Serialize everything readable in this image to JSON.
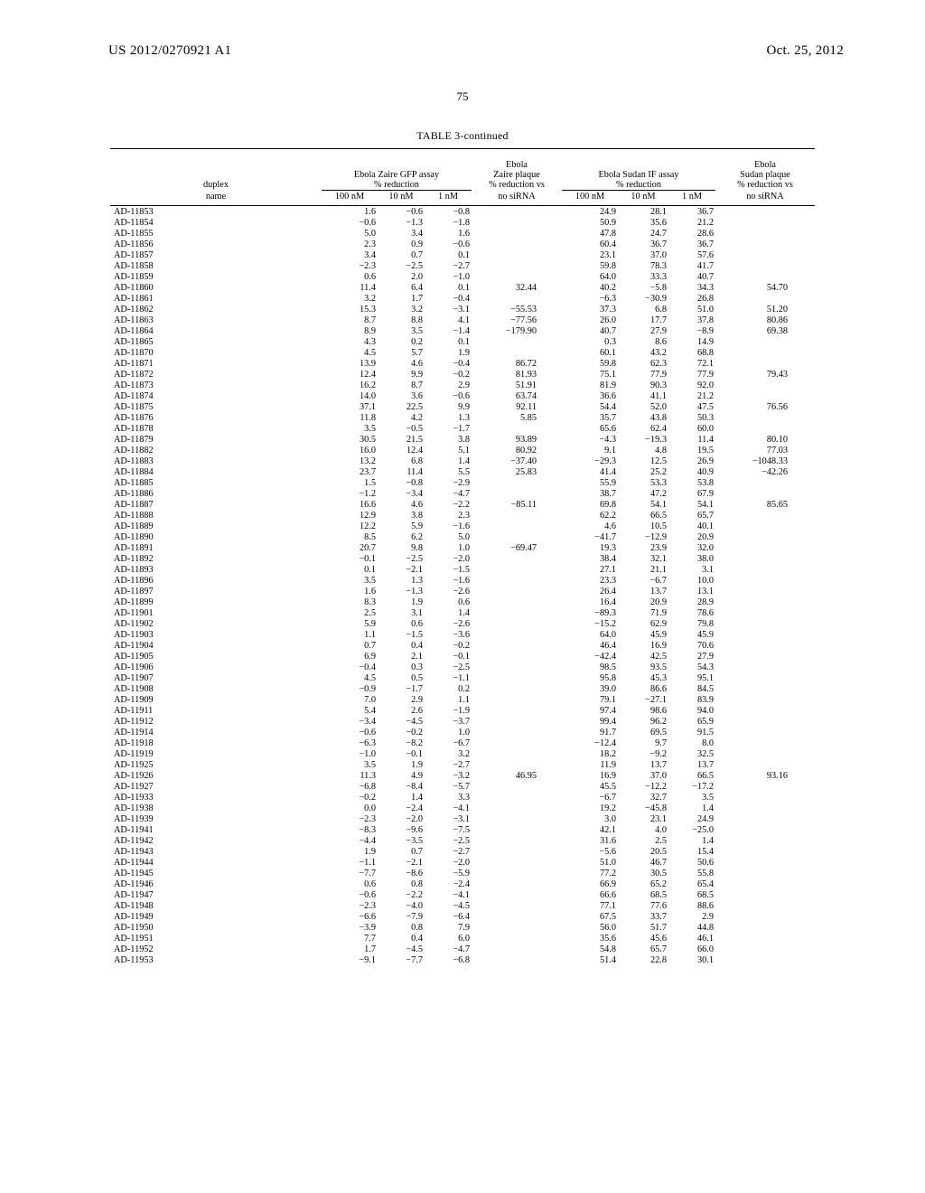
{
  "header": {
    "pub_number": "US 2012/0270921 A1",
    "pub_date": "Oct. 25, 2012",
    "page_number": "75"
  },
  "table": {
    "caption": "TABLE 3-continued",
    "header_group": {
      "duplex": "duplex",
      "zaire_gfp": "Ebola Zaire GFP assay\n% reduction",
      "zaire_plaque": "Ebola\nZaire plaque\n% reduction vs",
      "sudan_if": "Ebola Sudan IF assay\n% reduction",
      "sudan_plaque": "Ebola\nSudan plaque\n% reduction vs"
    },
    "header_units": {
      "name": "name",
      "c1": "100 nM",
      "c2": "10 nM",
      "c3": "1 nM",
      "c4": "no siRNA",
      "c5": "100 nM",
      "c6": "10 nM",
      "c7": "1 nM",
      "c8": "no siRNA"
    },
    "rows": [
      {
        "name": "AD-11853",
        "c1": "1.6",
        "c2": "−0.6",
        "c3": "−0.8",
        "c4": "",
        "c5": "24.9",
        "c6": "28.1",
        "c7": "36.7",
        "c8": ""
      },
      {
        "name": "AD-11854",
        "c1": "−0.6",
        "c2": "−1.3",
        "c3": "−1.8",
        "c4": "",
        "c5": "50.9",
        "c6": "35.6",
        "c7": "21.2",
        "c8": ""
      },
      {
        "name": "AD-11855",
        "c1": "5.0",
        "c2": "3.4",
        "c3": "1.6",
        "c4": "",
        "c5": "47.8",
        "c6": "24.7",
        "c7": "28.6",
        "c8": ""
      },
      {
        "name": "AD-11856",
        "c1": "2.3",
        "c2": "0.9",
        "c3": "−0.6",
        "c4": "",
        "c5": "60.4",
        "c6": "36.7",
        "c7": "36.7",
        "c8": ""
      },
      {
        "name": "AD-11857",
        "c1": "3.4",
        "c2": "0.7",
        "c3": "0.1",
        "c4": "",
        "c5": "23.1",
        "c6": "37.0",
        "c7": "57.6",
        "c8": ""
      },
      {
        "name": "AD-11858",
        "c1": "−2.3",
        "c2": "−2.5",
        "c3": "−2.7",
        "c4": "",
        "c5": "59.8",
        "c6": "78.3",
        "c7": "41.7",
        "c8": ""
      },
      {
        "name": "AD-11859",
        "c1": "0.6",
        "c2": "2.0",
        "c3": "−1.0",
        "c4": "",
        "c5": "64.0",
        "c6": "33.3",
        "c7": "40.7",
        "c8": ""
      },
      {
        "name": "AD-11860",
        "c1": "11.4",
        "c2": "6.4",
        "c3": "0.1",
        "c4": "32.44",
        "c5": "40.2",
        "c6": "−5.8",
        "c7": "34.3",
        "c8": "54.70"
      },
      {
        "name": "AD-11861",
        "c1": "3.2",
        "c2": "1.7",
        "c3": "−0.4",
        "c4": "",
        "c5": "−6.3",
        "c6": "−30.9",
        "c7": "26.8",
        "c8": ""
      },
      {
        "name": "AD-11862",
        "c1": "15.3",
        "c2": "3.2",
        "c3": "−3.1",
        "c4": "−55.53",
        "c5": "37.3",
        "c6": "6.8",
        "c7": "51.0",
        "c8": "51.20"
      },
      {
        "name": "AD-11863",
        "c1": "8.7",
        "c2": "8.8",
        "c3": "4.1",
        "c4": "−77.56",
        "c5": "26.0",
        "c6": "17.7",
        "c7": "37.8",
        "c8": "80.86"
      },
      {
        "name": "AD-11864",
        "c1": "8.9",
        "c2": "3.5",
        "c3": "−1.4",
        "c4": "−179.90",
        "c5": "40.7",
        "c6": "27.9",
        "c7": "−8.9",
        "c8": "69.38"
      },
      {
        "name": "AD-11865",
        "c1": "4.3",
        "c2": "0.2",
        "c3": "0.1",
        "c4": "",
        "c5": "0.3",
        "c6": "8.6",
        "c7": "14.9",
        "c8": ""
      },
      {
        "name": "AD-11870",
        "c1": "4.5",
        "c2": "5.7",
        "c3": "1.9",
        "c4": "",
        "c5": "60.1",
        "c6": "43.2",
        "c7": "68.8",
        "c8": ""
      },
      {
        "name": "AD-11871",
        "c1": "13.9",
        "c2": "4.6",
        "c3": "−0.4",
        "c4": "86.72",
        "c5": "59.8",
        "c6": "62.3",
        "c7": "72.1",
        "c8": ""
      },
      {
        "name": "AD-11872",
        "c1": "12.4",
        "c2": "9.9",
        "c3": "−0.2",
        "c4": "81.93",
        "c5": "75.1",
        "c6": "77.9",
        "c7": "77.9",
        "c8": "79.43"
      },
      {
        "name": "AD-11873",
        "c1": "16.2",
        "c2": "8.7",
        "c3": "2.9",
        "c4": "51.91",
        "c5": "81.9",
        "c6": "90.3",
        "c7": "92.0",
        "c8": ""
      },
      {
        "name": "AD-11874",
        "c1": "14.0",
        "c2": "3.6",
        "c3": "−0.6",
        "c4": "63.74",
        "c5": "36.6",
        "c6": "41.1",
        "c7": "21.2",
        "c8": ""
      },
      {
        "name": "AD-11875",
        "c1": "37.1",
        "c2": "22.5",
        "c3": "9.9",
        "c4": "92.11",
        "c5": "54.4",
        "c6": "52.0",
        "c7": "47.5",
        "c8": "76.56"
      },
      {
        "name": "AD-11876",
        "c1": "11.8",
        "c2": "4.2",
        "c3": "1.3",
        "c4": "5.85",
        "c5": "35.7",
        "c6": "43.8",
        "c7": "50.3",
        "c8": ""
      },
      {
        "name": "AD-11878",
        "c1": "3.5",
        "c2": "−0.5",
        "c3": "−1.7",
        "c4": "",
        "c5": "65.6",
        "c6": "62.4",
        "c7": "60.0",
        "c8": ""
      },
      {
        "name": "AD-11879",
        "c1": "30.5",
        "c2": "21.5",
        "c3": "3.8",
        "c4": "93.89",
        "c5": "−4.3",
        "c6": "−19.3",
        "c7": "11.4",
        "c8": "80.10"
      },
      {
        "name": "AD-11882",
        "c1": "16.0",
        "c2": "12.4",
        "c3": "5.1",
        "c4": "80.92",
        "c5": "9.1",
        "c6": "4.8",
        "c7": "19.5",
        "c8": "77.03"
      },
      {
        "name": "AD-11883",
        "c1": "13.2",
        "c2": "6.8",
        "c3": "1.4",
        "c4": "−37.40",
        "c5": "−29.3",
        "c6": "12.5",
        "c7": "26.9",
        "c8": "−1048.33"
      },
      {
        "name": "AD-11884",
        "c1": "23.7",
        "c2": "11.4",
        "c3": "5.5",
        "c4": "25.83",
        "c5": "41.4",
        "c6": "25.2",
        "c7": "40.9",
        "c8": "−42.26"
      },
      {
        "name": "AD-11885",
        "c1": "1.5",
        "c2": "−0.8",
        "c3": "−2.9",
        "c4": "",
        "c5": "55.9",
        "c6": "53.3",
        "c7": "53.8",
        "c8": ""
      },
      {
        "name": "AD-11886",
        "c1": "−1.2",
        "c2": "−3.4",
        "c3": "−4.7",
        "c4": "",
        "c5": "38.7",
        "c6": "47.2",
        "c7": "67.9",
        "c8": ""
      },
      {
        "name": "AD-11887",
        "c1": "16.6",
        "c2": "4.6",
        "c3": "−2.2",
        "c4": "−85.11",
        "c5": "69.8",
        "c6": "54.1",
        "c7": "54.1",
        "c8": "85.65"
      },
      {
        "name": "AD-11888",
        "c1": "12.9",
        "c2": "3.8",
        "c3": "2.3",
        "c4": "",
        "c5": "62.2",
        "c6": "66.5",
        "c7": "65.7",
        "c8": ""
      },
      {
        "name": "AD-11889",
        "c1": "12.2",
        "c2": "5.9",
        "c3": "−1.6",
        "c4": "",
        "c5": "4.6",
        "c6": "10.5",
        "c7": "40.1",
        "c8": ""
      },
      {
        "name": "AD-11890",
        "c1": "8.5",
        "c2": "6.2",
        "c3": "5.0",
        "c4": "",
        "c5": "−41.7",
        "c6": "−12.9",
        "c7": "20.9",
        "c8": ""
      },
      {
        "name": "AD-11891",
        "c1": "20.7",
        "c2": "9.8",
        "c3": "1.0",
        "c4": "−69.47",
        "c5": "19.3",
        "c6": "23.9",
        "c7": "32.0",
        "c8": ""
      },
      {
        "name": "AD-11892",
        "c1": "−0.1",
        "c2": "−2.5",
        "c3": "−2.0",
        "c4": "",
        "c5": "38.4",
        "c6": "32.1",
        "c7": "38.0",
        "c8": ""
      },
      {
        "name": "AD-11893",
        "c1": "0.1",
        "c2": "−2.1",
        "c3": "−1.5",
        "c4": "",
        "c5": "27.1",
        "c6": "21.1",
        "c7": "3.1",
        "c8": ""
      },
      {
        "name": "AD-11896",
        "c1": "3.5",
        "c2": "1.3",
        "c3": "−1.6",
        "c4": "",
        "c5": "23.3",
        "c6": "−6.7",
        "c7": "10.0",
        "c8": ""
      },
      {
        "name": "AD-11897",
        "c1": "1.6",
        "c2": "−1.3",
        "c3": "−2.6",
        "c4": "",
        "c5": "26.4",
        "c6": "13.7",
        "c7": "13.1",
        "c8": ""
      },
      {
        "name": "AD-11899",
        "c1": "8.3",
        "c2": "1.9",
        "c3": "0.6",
        "c4": "",
        "c5": "16.4",
        "c6": "20.9",
        "c7": "28.9",
        "c8": ""
      },
      {
        "name": "AD-11901",
        "c1": "2.5",
        "c2": "3.1",
        "c3": "1.4",
        "c4": "",
        "c5": "−89.3",
        "c6": "71.9",
        "c7": "78.6",
        "c8": ""
      },
      {
        "name": "AD-11902",
        "c1": "5.9",
        "c2": "0.6",
        "c3": "−2.6",
        "c4": "",
        "c5": "−15.2",
        "c6": "62.9",
        "c7": "79.8",
        "c8": ""
      },
      {
        "name": "AD-11903",
        "c1": "1.1",
        "c2": "−1.5",
        "c3": "−3.6",
        "c4": "",
        "c5": "64.0",
        "c6": "45.9",
        "c7": "45.9",
        "c8": ""
      },
      {
        "name": "AD-11904",
        "c1": "0.7",
        "c2": "0.4",
        "c3": "−0.2",
        "c4": "",
        "c5": "46.4",
        "c6": "16.9",
        "c7": "70.6",
        "c8": ""
      },
      {
        "name": "AD-11905",
        "c1": "6.9",
        "c2": "2.1",
        "c3": "−0.1",
        "c4": "",
        "c5": "−42.4",
        "c6": "42.5",
        "c7": "27.9",
        "c8": ""
      },
      {
        "name": "AD-11906",
        "c1": "−0.4",
        "c2": "0.3",
        "c3": "−2.5",
        "c4": "",
        "c5": "98.5",
        "c6": "93.5",
        "c7": "54.3",
        "c8": ""
      },
      {
        "name": "AD-11907",
        "c1": "4.5",
        "c2": "0.5",
        "c3": "−1.1",
        "c4": "",
        "c5": "95.8",
        "c6": "45.3",
        "c7": "95.1",
        "c8": ""
      },
      {
        "name": "AD-11908",
        "c1": "−0.9",
        "c2": "−1.7",
        "c3": "0.2",
        "c4": "",
        "c5": "39.0",
        "c6": "86.6",
        "c7": "84.5",
        "c8": ""
      },
      {
        "name": "AD-11909",
        "c1": "7.0",
        "c2": "2.9",
        "c3": "1.1",
        "c4": "",
        "c5": "79.1",
        "c6": "−27.1",
        "c7": "83.9",
        "c8": ""
      },
      {
        "name": "AD-11911",
        "c1": "5.4",
        "c2": "2.6",
        "c3": "−1.9",
        "c4": "",
        "c5": "97.4",
        "c6": "98.6",
        "c7": "94.0",
        "c8": ""
      },
      {
        "name": "AD-11912",
        "c1": "−3.4",
        "c2": "−4.5",
        "c3": "−3.7",
        "c4": "",
        "c5": "99.4",
        "c6": "96.2",
        "c7": "65.9",
        "c8": ""
      },
      {
        "name": "AD-11914",
        "c1": "−0.6",
        "c2": "−0.2",
        "c3": "1.0",
        "c4": "",
        "c5": "91.7",
        "c6": "69.5",
        "c7": "91.5",
        "c8": ""
      },
      {
        "name": "AD-11918",
        "c1": "−6.3",
        "c2": "−8.2",
        "c3": "−6.7",
        "c4": "",
        "c5": "−12.4",
        "c6": "9.7",
        "c7": "8.0",
        "c8": ""
      },
      {
        "name": "AD-11919",
        "c1": "−1.0",
        "c2": "−0.1",
        "c3": "3.2",
        "c4": "",
        "c5": "18.2",
        "c6": "−9.2",
        "c7": "32.5",
        "c8": ""
      },
      {
        "name": "AD-11925",
        "c1": "3.5",
        "c2": "1.9",
        "c3": "−2.7",
        "c4": "",
        "c5": "11.9",
        "c6": "13.7",
        "c7": "13.7",
        "c8": ""
      },
      {
        "name": "AD-11926",
        "c1": "11.3",
        "c2": "4.9",
        "c3": "−3.2",
        "c4": "46.95",
        "c5": "16.9",
        "c6": "37.0",
        "c7": "66.5",
        "c8": "93.16"
      },
      {
        "name": "AD-11927",
        "c1": "−6.8",
        "c2": "−8.4",
        "c3": "−5.7",
        "c4": "",
        "c5": "45.5",
        "c6": "−12.2",
        "c7": "−17.2",
        "c8": ""
      },
      {
        "name": "AD-11933",
        "c1": "−0.2",
        "c2": "1.4",
        "c3": "3.3",
        "c4": "",
        "c5": "−6.7",
        "c6": "32.7",
        "c7": "3.5",
        "c8": ""
      },
      {
        "name": "AD-11938",
        "c1": "0.0",
        "c2": "−2.4",
        "c3": "−4.1",
        "c4": "",
        "c5": "19.2",
        "c6": "−45.8",
        "c7": "1.4",
        "c8": ""
      },
      {
        "name": "AD-11939",
        "c1": "−2.3",
        "c2": "−2.0",
        "c3": "−3.1",
        "c4": "",
        "c5": "3.0",
        "c6": "23.1",
        "c7": "24.9",
        "c8": ""
      },
      {
        "name": "AD-11941",
        "c1": "−8.3",
        "c2": "−9.6",
        "c3": "−7.5",
        "c4": "",
        "c5": "42.1",
        "c6": "4.0",
        "c7": "−25.0",
        "c8": ""
      },
      {
        "name": "AD-11942",
        "c1": "−4.4",
        "c2": "−3.5",
        "c3": "−2.5",
        "c4": "",
        "c5": "31.6",
        "c6": "2.5",
        "c7": "1.4",
        "c8": ""
      },
      {
        "name": "AD-11943",
        "c1": "1.9",
        "c2": "0.7",
        "c3": "−2.7",
        "c4": "",
        "c5": "−5.6",
        "c6": "20.5",
        "c7": "15.4",
        "c8": ""
      },
      {
        "name": "AD-11944",
        "c1": "−1.1",
        "c2": "−2.1",
        "c3": "−2.0",
        "c4": "",
        "c5": "51.0",
        "c6": "46.7",
        "c7": "50.6",
        "c8": ""
      },
      {
        "name": "AD-11945",
        "c1": "−7.7",
        "c2": "−8.6",
        "c3": "−5.9",
        "c4": "",
        "c5": "77.2",
        "c6": "30.5",
        "c7": "55.8",
        "c8": ""
      },
      {
        "name": "AD-11946",
        "c1": "0.6",
        "c2": "0.8",
        "c3": "−2.4",
        "c4": "",
        "c5": "66.9",
        "c6": "65.2",
        "c7": "65.4",
        "c8": ""
      },
      {
        "name": "AD-11947",
        "c1": "−0.6",
        "c2": "−2.2",
        "c3": "−4.1",
        "c4": "",
        "c5": "66.6",
        "c6": "68.5",
        "c7": "68.5",
        "c8": ""
      },
      {
        "name": "AD-11948",
        "c1": "−2.3",
        "c2": "−4.0",
        "c3": "−4.5",
        "c4": "",
        "c5": "77.1",
        "c6": "77.6",
        "c7": "88.6",
        "c8": ""
      },
      {
        "name": "AD-11949",
        "c1": "−6.6",
        "c2": "−7.9",
        "c3": "−6.4",
        "c4": "",
        "c5": "67.5",
        "c6": "33.7",
        "c7": "2.9",
        "c8": ""
      },
      {
        "name": "AD-11950",
        "c1": "−3.9",
        "c2": "0.8",
        "c3": "7.9",
        "c4": "",
        "c5": "56.0",
        "c6": "51.7",
        "c7": "44.8",
        "c8": ""
      },
      {
        "name": "AD-11951",
        "c1": "7.7",
        "c2": "0.4",
        "c3": "6.0",
        "c4": "",
        "c5": "35.6",
        "c6": "45.6",
        "c7": "46.1",
        "c8": ""
      },
      {
        "name": "AD-11952",
        "c1": "1.7",
        "c2": "−4.5",
        "c3": "−4.7",
        "c4": "",
        "c5": "54.8",
        "c6": "65.7",
        "c7": "66.0",
        "c8": ""
      },
      {
        "name": "AD-11953",
        "c1": "−9.1",
        "c2": "−7.7",
        "c3": "−6.8",
        "c4": "",
        "c5": "51.4",
        "c6": "22.8",
        "c7": "30.1",
        "c8": ""
      }
    ]
  }
}
